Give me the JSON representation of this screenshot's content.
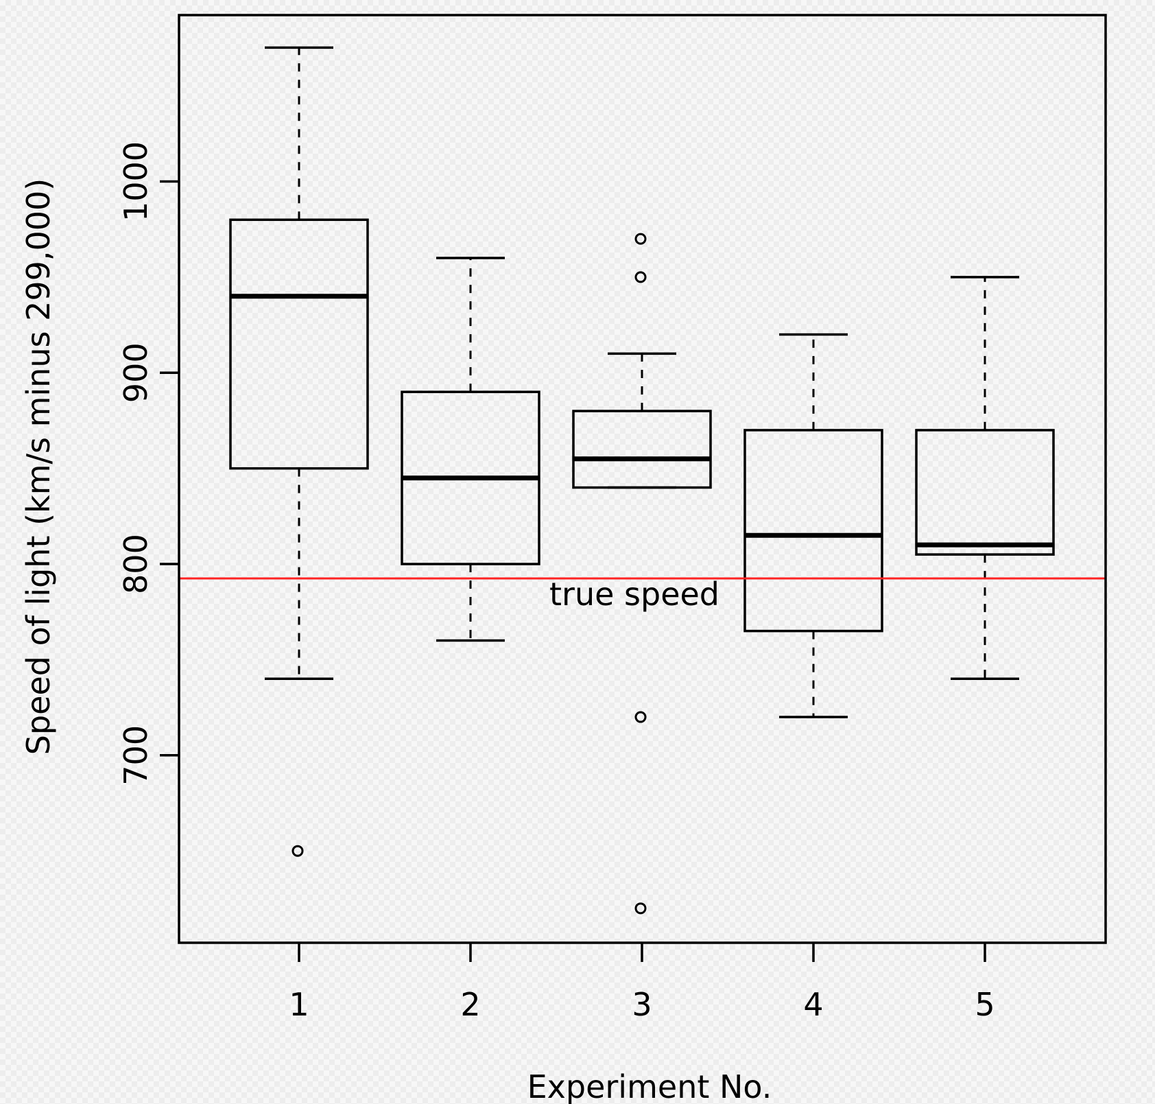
{
  "chart_data": {
    "type": "boxplot",
    "title": "",
    "xlabel": "Experiment No.",
    "ylabel": "Speed of light (km/s minus 299,000)",
    "categories": [
      "1",
      "2",
      "3",
      "4",
      "5"
    ],
    "ylim": [
      602,
      1087
    ],
    "yticks": [
      700,
      800,
      900,
      1000
    ],
    "boxes": [
      {
        "label": "1",
        "whisker_low": 740,
        "q1": 850,
        "median": 940,
        "q3": 980,
        "whisker_high": 1070,
        "outliers": [
          650
        ]
      },
      {
        "label": "2",
        "whisker_low": 760,
        "q1": 800,
        "median": 845,
        "q3": 890,
        "whisker_high": 960,
        "outliers": []
      },
      {
        "label": "3",
        "whisker_low": 840,
        "q1": 840,
        "median": 855,
        "q3": 880,
        "whisker_high": 910,
        "outliers": [
          970,
          950,
          720,
          620
        ]
      },
      {
        "label": "4",
        "whisker_low": 720,
        "q1": 765,
        "median": 815,
        "q3": 870,
        "whisker_high": 920,
        "outliers": []
      },
      {
        "label": "5",
        "whisker_low": 740,
        "q1": 805,
        "median": 810,
        "q3": 870,
        "whisker_high": 950,
        "outliers": []
      }
    ],
    "reference_line": {
      "value": 792.5,
      "label": "true speed",
      "color": "#ff2222"
    }
  }
}
